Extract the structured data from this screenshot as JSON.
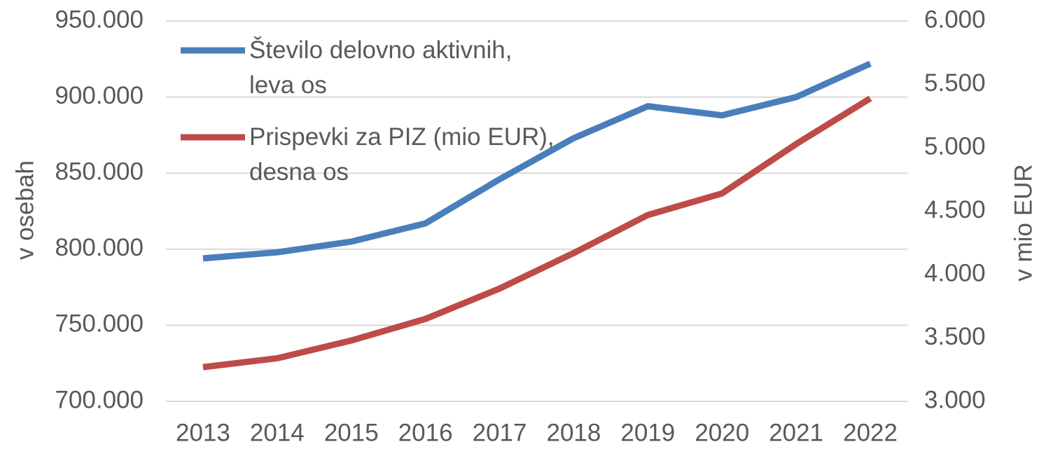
{
  "chart_data": {
    "type": "line",
    "categories": [
      "2013",
      "2014",
      "2015",
      "2016",
      "2017",
      "2018",
      "2019",
      "2020",
      "2021",
      "2022"
    ],
    "series": [
      {
        "name": "Število delovno aktivnih,\nleva os",
        "color": "#4a7ebb",
        "axis": "y",
        "values": [
          794000,
          798000,
          805000,
          817000,
          846000,
          873000,
          894000,
          888000,
          900000,
          922000
        ]
      },
      {
        "name": "Prispevki za PIZ (mio EUR),\ndesna os",
        "color": "#be4b48",
        "axis": "y2",
        "values": [
          3270,
          3340,
          3480,
          3650,
          3890,
          4170,
          4470,
          4640,
          5030,
          5390
        ]
      }
    ],
    "ylabel": "v osebah",
    "y2label": "v mio EUR",
    "ylim": [
      700000,
      950000
    ],
    "yticks": [
      {
        "value": 700000,
        "label": "700.000"
      },
      {
        "value": 750000,
        "label": "750.000"
      },
      {
        "value": 800000,
        "label": "800.000"
      },
      {
        "value": 850000,
        "label": "850.000"
      },
      {
        "value": 900000,
        "label": "900.000"
      },
      {
        "value": 950000,
        "label": "950.000"
      }
    ],
    "y2lim": [
      3000,
      6000
    ],
    "y2ticks": [
      {
        "value": 3000,
        "label": "3.000"
      },
      {
        "value": 3500,
        "label": "3.500"
      },
      {
        "value": 4000,
        "label": "4.000"
      },
      {
        "value": 4500,
        "label": "4.500"
      },
      {
        "value": 5000,
        "label": "5.000"
      },
      {
        "value": 5500,
        "label": "5.500"
      },
      {
        "value": 6000,
        "label": "6.000"
      }
    ],
    "grid": true,
    "legend": "upper left"
  }
}
